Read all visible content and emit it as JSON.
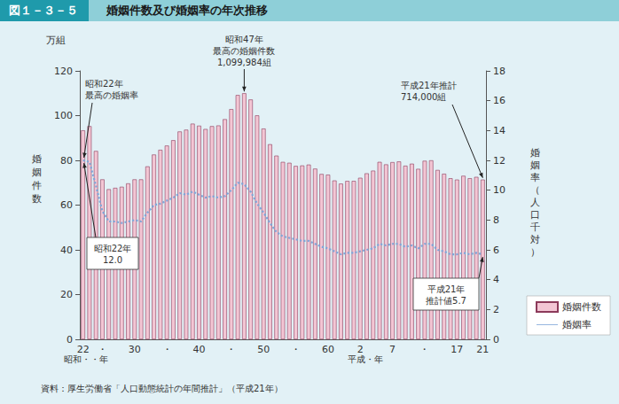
{
  "chart_data": {
    "type": "bar",
    "figure_label": "図１－３－５",
    "title": "婚姻件数及び婚姻率の年次推移",
    "y_unit": "万組",
    "y_label": "婚姻件数",
    "y2_label": "婚姻率（人口千対）",
    "era_labels": [
      "昭和・・年",
      "平成・年"
    ],
    "source": "資料：厚生労働省「人口動態統計の年間推計」（平成21年）",
    "annotations": [
      "昭和22年\n最高の婚姻率",
      "昭和47年\n最高の婚姻件数\n1,099,984組",
      "平成21年推計\n714,000組",
      "昭和22年\n12.0",
      "平成21年\n推計値5.7"
    ],
    "categories": [
      "22",
      null,
      null,
      "・",
      null,
      null,
      null,
      null,
      "30",
      null,
      null,
      null,
      null,
      "・",
      null,
      null,
      null,
      null,
      "40",
      null,
      null,
      null,
      null,
      "・",
      null,
      null,
      null,
      null,
      "50",
      null,
      null,
      null,
      null,
      "・",
      null,
      null,
      null,
      null,
      "60",
      null,
      null,
      null,
      null,
      "2",
      null,
      null,
      null,
      null,
      "7",
      null,
      null,
      null,
      null,
      "・",
      null,
      null,
      null,
      null,
      "17",
      null,
      null,
      null,
      "21"
    ],
    "series": [
      {
        "name": "婚姻件数",
        "type": "bar",
        "color": "#f3c6d4",
        "values": [
          93.4,
          95.3,
          84.2,
          71.5,
          67.1,
          67.7,
          68.2,
          69.7,
          71.5,
          71.5,
          77.3,
          82.6,
          84.7,
          86.6,
          89.0,
          92.9,
          93.7,
          96.4,
          95.5,
          94.0,
          95.3,
          95.6,
          98.4,
          102.9,
          109.2,
          110.0,
          107.2,
          100.1,
          94.2,
          87.2,
          82.1,
          79.3,
          78.9,
          77.5,
          77.7,
          78.1,
          76.3,
          73.9,
          73.6,
          71.0,
          69.6,
          70.8,
          70.8,
          72.2,
          74.2,
          75.4,
          79.3,
          78.2,
          79.2,
          79.5,
          77.6,
          78.5,
          76.2,
          79.8,
          80.0,
          75.7,
          74.0,
          72.0,
          71.4,
          73.1,
          72.0,
          72.6,
          71.4
        ]
      },
      {
        "name": "婚姻率",
        "type": "line",
        "axis": "y2",
        "color": "#7fa6d9",
        "line_style": "dotted",
        "values": [
          12.0,
          11.9,
          10.3,
          8.6,
          7.9,
          7.9,
          7.8,
          7.9,
          8.0,
          7.9,
          8.5,
          9.0,
          9.1,
          9.3,
          9.5,
          9.8,
          9.7,
          9.9,
          9.7,
          9.5,
          9.6,
          9.5,
          9.6,
          10.0,
          10.5,
          10.4,
          9.9,
          9.1,
          8.5,
          7.8,
          7.2,
          6.9,
          6.8,
          6.7,
          6.6,
          6.6,
          6.4,
          6.2,
          6.1,
          5.9,
          5.7,
          5.8,
          5.8,
          5.9,
          6.0,
          6.1,
          6.4,
          6.3,
          6.4,
          6.4,
          6.2,
          6.3,
          6.1,
          6.4,
          6.4,
          6.0,
          5.9,
          5.7,
          5.7,
          5.8,
          5.7,
          5.8,
          5.7
        ]
      }
    ],
    "ylim": [
      0,
      120
    ],
    "yticks": [
      0,
      20,
      40,
      60,
      80,
      100,
      120
    ],
    "y2lim": [
      0,
      18
    ],
    "y2ticks": [
      0,
      2,
      4,
      6,
      8,
      10,
      12,
      14,
      16,
      18
    ],
    "grid": false,
    "legend": "right"
  }
}
